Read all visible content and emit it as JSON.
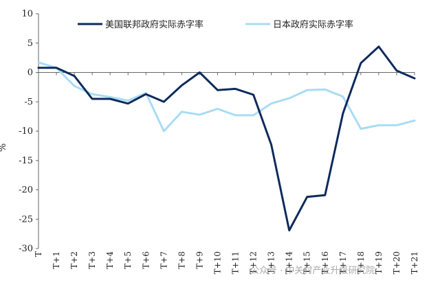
{
  "chart_data": {
    "type": "line",
    "ylabel": "%",
    "ylim": [
      -30,
      10
    ],
    "yticks": [
      10,
      5,
      0,
      -5,
      -10,
      -15,
      -20,
      -25,
      -30
    ],
    "categories": [
      "T",
      "T+1",
      "T+2",
      "T+3",
      "T+4",
      "T+5",
      "T+6",
      "T+7",
      "T+8",
      "T+9",
      "T+10",
      "T+11",
      "T+12",
      "T+13",
      "T+14",
      "T+15",
      "T+16",
      "T+17",
      "T+18",
      "T+19",
      "T+20",
      "T+21"
    ],
    "legend_position": "top",
    "grid": false,
    "series": [
      {
        "name": "美国联邦政府实际赤字率",
        "color": "#0d2a5c",
        "values": [
          0.8,
          0.8,
          -0.6,
          -4.5,
          -4.5,
          -5.3,
          -3.7,
          -5.0,
          -2.2,
          0.0,
          -3.0,
          -2.8,
          -3.8,
          -12.3,
          -26.9,
          -21.2,
          -20.9,
          -7.0,
          1.6,
          4.4,
          0.3,
          -1.0
        ]
      },
      {
        "name": "日本政府实际赤字率",
        "color": "#a8dcf4",
        "values": [
          1.7,
          0.8,
          -2.3,
          -3.7,
          -4.2,
          -4.8,
          -3.5,
          -10.0,
          -6.7,
          -7.2,
          -6.2,
          -7.3,
          -7.3,
          -5.3,
          -4.4,
          -3.0,
          -2.9,
          -4.1,
          -9.6,
          -9.0,
          -9.0,
          -8.2
        ]
      }
    ]
  },
  "watermark": "公众号 · 中关村产业升级研究院"
}
